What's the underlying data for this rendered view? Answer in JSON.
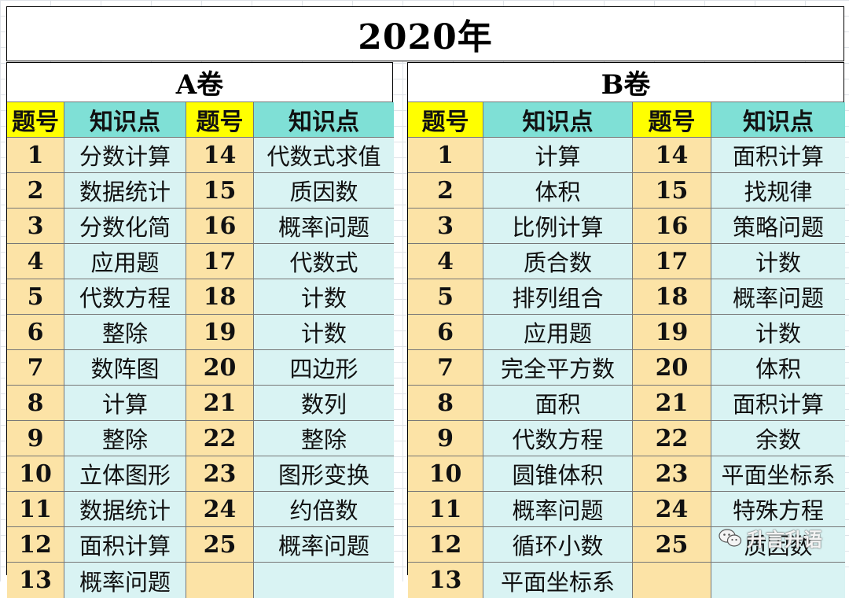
{
  "title": "2020年",
  "panels": [
    {
      "title": "A卷",
      "headers": [
        "题号",
        "知识点",
        "题号",
        "知识点"
      ],
      "left": [
        {
          "num": "1",
          "topic": "分数计算"
        },
        {
          "num": "2",
          "topic": "数据统计"
        },
        {
          "num": "3",
          "topic": "分数化简"
        },
        {
          "num": "4",
          "topic": "应用题"
        },
        {
          "num": "5",
          "topic": "代数方程"
        },
        {
          "num": "6",
          "topic": "整除"
        },
        {
          "num": "7",
          "topic": "数阵图"
        },
        {
          "num": "8",
          "topic": "计算"
        },
        {
          "num": "9",
          "topic": "整除"
        },
        {
          "num": "10",
          "topic": "立体图形"
        },
        {
          "num": "11",
          "topic": "数据统计"
        },
        {
          "num": "12",
          "topic": "面积计算"
        },
        {
          "num": "13",
          "topic": "概率问题"
        }
      ],
      "right": [
        {
          "num": "14",
          "topic": "代数式求值"
        },
        {
          "num": "15",
          "topic": "质因数"
        },
        {
          "num": "16",
          "topic": "概率问题"
        },
        {
          "num": "17",
          "topic": "代数式"
        },
        {
          "num": "18",
          "topic": "计数"
        },
        {
          "num": "19",
          "topic": "计数"
        },
        {
          "num": "20",
          "topic": "四边形"
        },
        {
          "num": "21",
          "topic": "数列"
        },
        {
          "num": "22",
          "topic": "整除"
        },
        {
          "num": "23",
          "topic": "图形变换"
        },
        {
          "num": "24",
          "topic": "约倍数"
        },
        {
          "num": "25",
          "topic": "概率问题"
        },
        {
          "num": "",
          "topic": ""
        }
      ]
    },
    {
      "title": "B卷",
      "headers": [
        "题号",
        "知识点",
        "题号",
        "知识点"
      ],
      "left": [
        {
          "num": "1",
          "topic": "计算"
        },
        {
          "num": "2",
          "topic": "体积"
        },
        {
          "num": "3",
          "topic": "比例计算"
        },
        {
          "num": "4",
          "topic": "质合数"
        },
        {
          "num": "5",
          "topic": "排列组合"
        },
        {
          "num": "6",
          "topic": "应用题"
        },
        {
          "num": "7",
          "topic": "完全平方数"
        },
        {
          "num": "8",
          "topic": "面积"
        },
        {
          "num": "9",
          "topic": "代数方程"
        },
        {
          "num": "10",
          "topic": "圆锥体积"
        },
        {
          "num": "11",
          "topic": "概率问题"
        },
        {
          "num": "12",
          "topic": "循环小数"
        },
        {
          "num": "13",
          "topic": "平面坐标系"
        }
      ],
      "right": [
        {
          "num": "14",
          "topic": "面积计算"
        },
        {
          "num": "15",
          "topic": "找规律"
        },
        {
          "num": "16",
          "topic": "策略问题"
        },
        {
          "num": "17",
          "topic": "计数"
        },
        {
          "num": "18",
          "topic": "概率问题"
        },
        {
          "num": "19",
          "topic": "计数"
        },
        {
          "num": "20",
          "topic": "体积"
        },
        {
          "num": "21",
          "topic": "面积计算"
        },
        {
          "num": "22",
          "topic": "余数"
        },
        {
          "num": "23",
          "topic": "平面坐标系"
        },
        {
          "num": "24",
          "topic": "特殊方程"
        },
        {
          "num": "25",
          "topic": "质因数"
        },
        {
          "num": "",
          "topic": ""
        }
      ]
    }
  ],
  "watermark": {
    "text": "升言升语",
    "icon": "wechat-icon"
  },
  "colors": {
    "header_num_bg": "#ffff00",
    "header_topic_bg": "#7fe0d6",
    "num_bg": "#fce3a6",
    "topic_bg": "#d9f3f3"
  }
}
